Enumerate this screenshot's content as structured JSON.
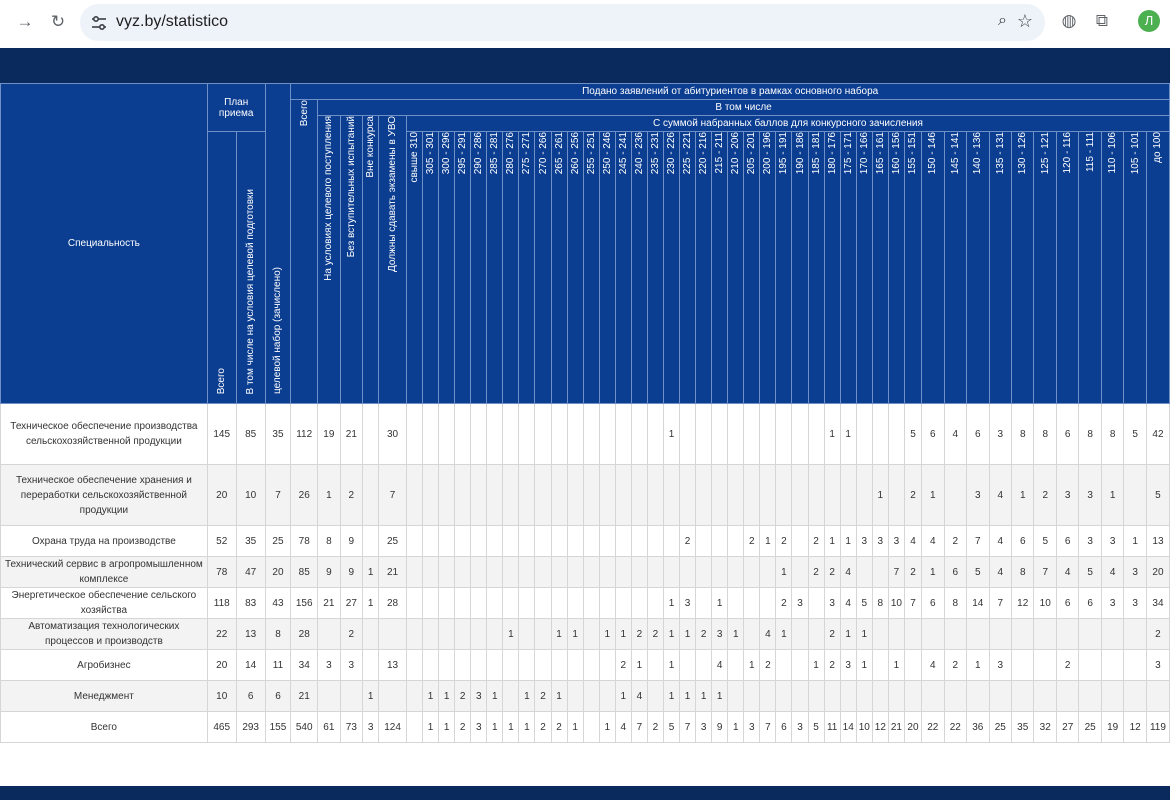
{
  "browser": {
    "url": "vyz.by/statistico",
    "avatar_letter": "Л",
    "icons": [
      "forward-icon",
      "reload-icon",
      "site-settings-icon",
      "zoom-icon",
      "star-icon",
      "globe-icon",
      "extensions-icon"
    ]
  },
  "table": {
    "spec_header": "Специальность",
    "plan_header": "План приема",
    "plan_cols": [
      "Всего",
      "В том числе на условия целевой подготовки"
    ],
    "target_enrolled": "целевой набор (зачислено)",
    "applied_header": "Подано заявлений от абитуриентов в рамках основного набора",
    "applied_total": "Всего",
    "including_header": "В том числе",
    "sub_cols": [
      "На условиях целевого поступления",
      "Без вступительных испытаний",
      "Вне конкурса",
      "Должны сдавать экзамены в УВО"
    ],
    "score_header": "С суммой набранных баллов для конкурсного зачисления",
    "score_cols": [
      "свыше 310",
      "305 - 301",
      "300 - 296",
      "295 - 291",
      "290 - 286",
      "285 - 281",
      "280 - 276",
      "275 - 271",
      "270 - 266",
      "265 - 261",
      "260 - 256",
      "255 - 251",
      "250 - 246",
      "245 - 241",
      "240 - 236",
      "235 - 231",
      "230 - 226",
      "225 - 221",
      "220 - 216",
      "215 - 211",
      "210 - 206",
      "205 - 201",
      "200 - 196",
      "195 - 191",
      "190 - 186",
      "185 - 181",
      "180 - 176",
      "175 - 171",
      "170 - 166",
      "165 - 161",
      "160 - 156",
      "155 - 151",
      "150 - 146",
      "145 - 141",
      "140 - 136",
      "135 - 131",
      "130 - 126",
      "125 - 121",
      "120 - 116",
      "115 - 111",
      "110 - 106",
      "105 - 101",
      "до 100"
    ],
    "rows": [
      {
        "name": "Техническое обеспечение производства сельскохозяйственной продукции",
        "cells": [
          "145",
          "85",
          "35",
          "112",
          "19",
          "21",
          "",
          "30",
          "",
          "",
          "",
          "",
          "",
          "",
          "",
          "",
          "",
          "",
          "",
          "",
          "",
          "",
          "",
          "",
          "1",
          "",
          "",
          "",
          "",
          "",
          "",
          "",
          "",
          "",
          "1",
          "1",
          "",
          "",
          "",
          "5",
          "6",
          "4",
          "6",
          "3",
          "8",
          "8",
          "6",
          "8",
          "8",
          "5",
          "42"
        ]
      },
      {
        "name": "Техническое обеспечение хранения и переработки сельскохозяйственной продукции",
        "cells": [
          "20",
          "10",
          "7",
          "26",
          "1",
          "2",
          "",
          "7",
          "",
          "",
          "",
          "",
          "",
          "",
          "",
          "",
          "",
          "",
          "",
          "",
          "",
          "",
          "",
          "",
          "",
          "",
          "",
          "",
          "",
          "",
          "",
          "",
          "",
          "",
          "",
          "",
          "",
          "1",
          "",
          "2",
          "1",
          "",
          "3",
          "4",
          "1",
          "2",
          "3",
          "3",
          "1",
          "",
          "5"
        ]
      },
      {
        "name": "Охрана труда на производстве",
        "cells": [
          "52",
          "35",
          "25",
          "78",
          "8",
          "9",
          "",
          "25",
          "",
          "",
          "",
          "",
          "",
          "",
          "",
          "",
          "",
          "",
          "",
          "",
          "",
          "",
          "",
          "",
          "",
          "2",
          "",
          "",
          "",
          "2",
          "1",
          "2",
          "",
          "2",
          "1",
          "1",
          "3",
          "3",
          "3",
          "4",
          "4",
          "2",
          "7",
          "4",
          "6",
          "5",
          "6",
          "3",
          "3",
          "1",
          "13"
        ]
      },
      {
        "name": "Технический сервис в агропромышленном комплексе",
        "cells": [
          "78",
          "47",
          "20",
          "85",
          "9",
          "9",
          "1",
          "21",
          "",
          "",
          "",
          "",
          "",
          "",
          "",
          "",
          "",
          "",
          "",
          "",
          "",
          "",
          "",
          "",
          "",
          "",
          "",
          "",
          "",
          "",
          "",
          "1",
          "",
          "2",
          "2",
          "4",
          "",
          "",
          "7",
          "2",
          "1",
          "6",
          "5",
          "4",
          "8",
          "7",
          "4",
          "5",
          "4",
          "3",
          "20"
        ]
      },
      {
        "name": "Энергетическое обеспечение сельского хозяйства",
        "cells": [
          "118",
          "83",
          "43",
          "156",
          "21",
          "27",
          "1",
          "28",
          "",
          "",
          "",
          "",
          "",
          "",
          "",
          "",
          "",
          "",
          "",
          "",
          "",
          "",
          "",
          "",
          "1",
          "3",
          "",
          "1",
          "",
          "",
          "",
          "2",
          "3",
          "",
          "3",
          "4",
          "5",
          "8",
          "10",
          "7",
          "6",
          "8",
          "14",
          "7",
          "12",
          "10",
          "6",
          "6",
          "3",
          "3",
          "34"
        ]
      },
      {
        "name": "Автоматизация технологических процессов и производств",
        "cells": [
          "22",
          "13",
          "8",
          "28",
          "",
          "2",
          "",
          "",
          "",
          "",
          "",
          "",
          "",
          "",
          "1",
          "",
          "",
          "1",
          "1",
          "",
          "1",
          "1",
          "2",
          "2",
          "1",
          "1",
          "2",
          "3",
          "1",
          "",
          "4",
          "1",
          "",
          "",
          "2",
          "1",
          "1",
          "",
          "",
          "",
          "",
          "",
          "",
          "",
          "",
          "",
          "",
          "",
          "",
          "",
          "2"
        ]
      },
      {
        "name": "Агробизнес",
        "cells": [
          "20",
          "14",
          "11",
          "34",
          "3",
          "3",
          "",
          "13",
          "",
          "",
          "",
          "",
          "",
          "",
          "",
          "",
          "",
          "",
          "",
          "",
          "",
          "2",
          "1",
          "",
          "1",
          "",
          "",
          "4",
          "",
          "1",
          "2",
          "",
          "",
          "1",
          "2",
          "3",
          "1",
          "",
          "1",
          "",
          "4",
          "2",
          "1",
          "3",
          "",
          "",
          "2",
          "",
          "",
          "",
          "3"
        ]
      },
      {
        "name": "Менеджмент",
        "cells": [
          "10",
          "6",
          "6",
          "21",
          "",
          "",
          "1",
          "",
          "",
          "1",
          "1",
          "2",
          "3",
          "1",
          "",
          "1",
          "2",
          "1",
          "",
          "",
          "",
          "1",
          "4",
          "",
          "1",
          "1",
          "1",
          "1",
          "",
          "",
          "",
          "",
          "",
          "",
          "",
          "",
          "",
          "",
          "",
          "",
          "",
          "",
          "",
          "",
          "",
          "",
          "",
          "",
          "",
          "",
          ""
        ]
      },
      {
        "name": "Всего",
        "cells": [
          "465",
          "293",
          "155",
          "540",
          "61",
          "73",
          "3",
          "124",
          "",
          "1",
          "1",
          "2",
          "3",
          "1",
          "1",
          "1",
          "2",
          "2",
          "1",
          "",
          "1",
          "4",
          "7",
          "2",
          "5",
          "7",
          "3",
          "9",
          "1",
          "3",
          "7",
          "6",
          "3",
          "5",
          "11",
          "14",
          "10",
          "12",
          "21",
          "20",
          "22",
          "22",
          "36",
          "25",
          "35",
          "32",
          "27",
          "25",
          "19",
          "12",
          "119"
        ]
      }
    ]
  }
}
